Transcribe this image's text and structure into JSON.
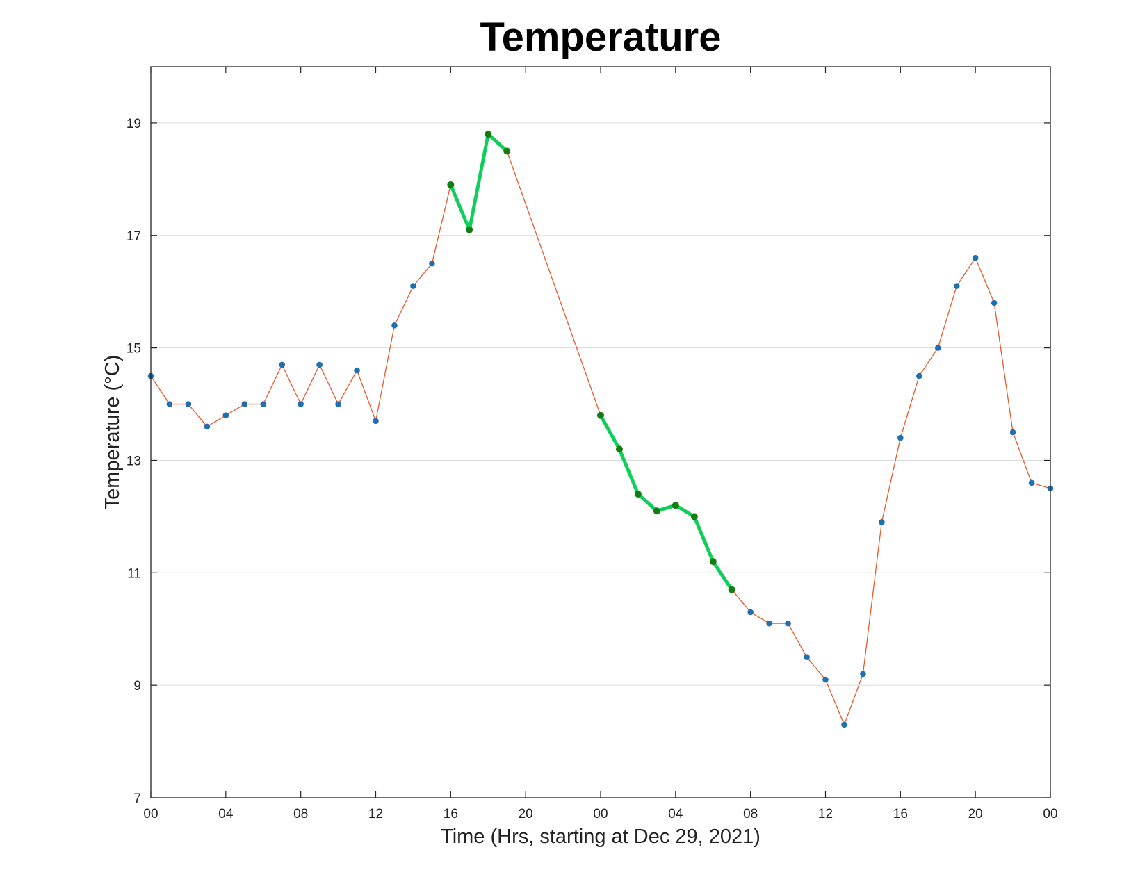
{
  "chart_data": {
    "type": "line",
    "title": "Temperature",
    "xlabel": "Time (Hrs, starting at Dec 29, 2021)",
    "ylabel": "Temperature (°C)",
    "ylim": [
      7,
      20
    ],
    "xlim": [
      "2021-12-29 00:00",
      "2021-12-31 00:00"
    ],
    "yticks": [
      7,
      9,
      11,
      13,
      15,
      17,
      19
    ],
    "xticks": [
      "00",
      "04",
      "08",
      "12",
      "16",
      "20",
      "00",
      "04",
      "08",
      "12",
      "16",
      "20",
      "00"
    ],
    "grid": "horizontal",
    "x": [
      "2021-12-29 00:00",
      "2021-12-29 01:00",
      "2021-12-29 02:00",
      "2021-12-29 03:00",
      "2021-12-29 04:00",
      "2021-12-29 05:00",
      "2021-12-29 06:00",
      "2021-12-29 07:00",
      "2021-12-29 08:00",
      "2021-12-29 09:00",
      "2021-12-29 10:00",
      "2021-12-29 11:00",
      "2021-12-29 12:00",
      "2021-12-29 13:00",
      "2021-12-29 14:00",
      "2021-12-29 15:00",
      "2021-12-29 16:00",
      "2021-12-29 17:00",
      "2021-12-29 18:00",
      "2021-12-29 19:00",
      "2021-12-30 00:00",
      "2021-12-30 01:00",
      "2021-12-30 02:00",
      "2021-12-30 03:00",
      "2021-12-30 04:00",
      "2021-12-30 05:00",
      "2021-12-30 06:00",
      "2021-12-30 07:00",
      "2021-12-30 08:00",
      "2021-12-30 09:00",
      "2021-12-30 10:00",
      "2021-12-30 11:00",
      "2021-12-30 12:00",
      "2021-12-30 13:00",
      "2021-12-30 14:00",
      "2021-12-30 15:00",
      "2021-12-30 16:00",
      "2021-12-30 17:00",
      "2021-12-30 18:00",
      "2021-12-30 19:00",
      "2021-12-30 20:00",
      "2021-12-30 21:00",
      "2021-12-30 22:00",
      "2021-12-30 23:00",
      "2021-12-31 00:00"
    ],
    "series": [
      {
        "values": [
          14.5,
          14.0,
          14.0,
          13.6,
          13.8,
          14.0,
          14.0,
          14.7,
          14.0,
          14.7,
          14.0,
          14.6,
          13.7,
          15.4,
          16.1,
          16.5,
          17.9,
          17.1,
          18.8,
          18.5,
          13.8,
          13.2,
          12.4,
          12.1,
          12.2,
          12.0,
          11.2,
          10.7,
          10.3,
          10.1,
          10.1,
          9.5,
          9.1,
          8.3,
          9.2,
          11.9,
          13.4,
          14.5,
          15.0,
          16.1,
          16.6,
          15.8,
          13.5,
          12.6,
          12.5
        ],
        "line_color": "#e8582a",
        "marker_color": "#1f6fb2"
      }
    ],
    "highlighted_segments": [
      {
        "start": "2021-12-29 16:00",
        "end": "2021-12-29 19:00"
      },
      {
        "start": "2021-12-30 00:00",
        "end": "2021-12-30 07:00"
      }
    ],
    "highlight_line_color": "#0fcf5a",
    "highlight_marker_color": "#127d12"
  }
}
